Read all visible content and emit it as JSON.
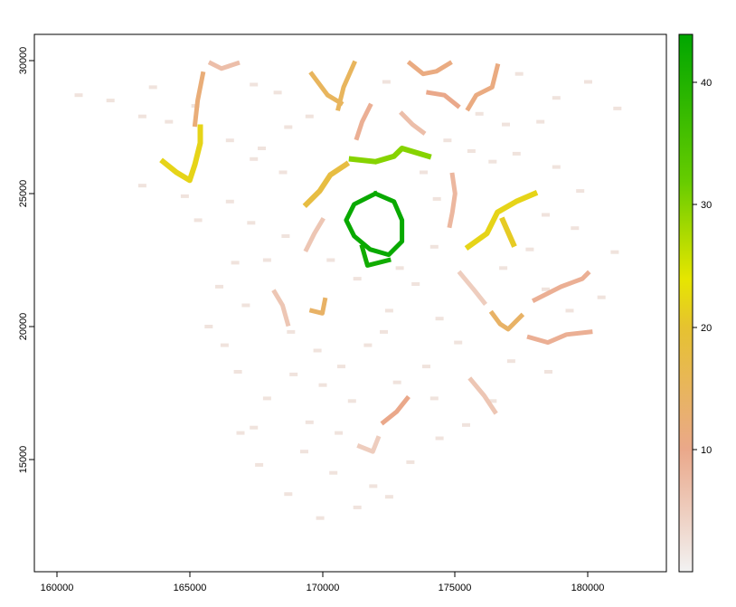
{
  "chart_data": {
    "type": "heatmap",
    "title": "",
    "xlabel": "",
    "ylabel": "",
    "xlim": [
      159000,
      183000
    ],
    "ylim": [
      11000,
      31000
    ],
    "x_ticks": [
      160000,
      165000,
      170000,
      175000,
      180000
    ],
    "y_ticks": [
      15000,
      20000,
      25000,
      30000
    ],
    "x_tick_labels": [
      "160000",
      "165000",
      "170000",
      "175000",
      "180000"
    ],
    "y_tick_labels": [
      "15000",
      "20000",
      "25000",
      "30000"
    ],
    "colorbar": {
      "range": [
        0,
        44
      ],
      "ticks": [
        10,
        20,
        30,
        40
      ],
      "tick_labels": [
        "10",
        "20",
        "30",
        "40"
      ],
      "stops": [
        {
          "value": 0,
          "color": "#f2f2f2"
        },
        {
          "value": 10,
          "color": "#eaa88a"
        },
        {
          "value": 20,
          "color": "#e6c230"
        },
        {
          "value": 24,
          "color": "#e6e600"
        },
        {
          "value": 32,
          "color": "#66cc00"
        },
        {
          "value": 44,
          "color": "#00a600"
        }
      ]
    },
    "features": [
      {
        "points": [
          [
            172000,
            25000
          ],
          [
            171200,
            24600
          ],
          [
            170900,
            24000
          ],
          [
            171200,
            23400
          ],
          [
            171800,
            22900
          ],
          [
            172500,
            22700
          ],
          [
            173000,
            23200
          ],
          [
            173000,
            24000
          ],
          [
            172700,
            24700
          ],
          [
            172000,
            25000
          ]
        ],
        "value": 43
      },
      {
        "points": [
          [
            171500,
            23000
          ],
          [
            171700,
            22300
          ],
          [
            172500,
            22500
          ]
        ],
        "value": 42
      },
      {
        "points": [
          [
            171100,
            26300
          ],
          [
            172000,
            26200
          ],
          [
            172700,
            26400
          ],
          [
            173000,
            26700
          ],
          [
            174000,
            26400
          ]
        ],
        "value": 30
      },
      {
        "points": [
          [
            164000,
            26200
          ],
          [
            164500,
            25800
          ],
          [
            165000,
            25500
          ],
          [
            165200,
            26100
          ],
          [
            165400,
            26900
          ],
          [
            165400,
            27500
          ]
        ],
        "value": 22
      },
      {
        "points": [
          [
            175500,
            23000
          ],
          [
            176200,
            23500
          ],
          [
            176600,
            24300
          ],
          [
            177300,
            24700
          ],
          [
            178000,
            25000
          ]
        ],
        "value": 22
      },
      {
        "points": [
          [
            176800,
            24000
          ],
          [
            177200,
            23100
          ]
        ],
        "value": 21
      },
      {
        "points": [
          [
            169400,
            24600
          ],
          [
            169900,
            25100
          ],
          [
            170300,
            25700
          ],
          [
            170900,
            26100
          ]
        ],
        "value": 18
      },
      {
        "points": [
          [
            169600,
            29500
          ],
          [
            170200,
            28700
          ],
          [
            170700,
            28400
          ]
        ],
        "value": 15
      },
      {
        "points": [
          [
            171200,
            29900
          ],
          [
            170800,
            29000
          ],
          [
            170600,
            28200
          ]
        ],
        "value": 15
      },
      {
        "points": [
          [
            169600,
            20600
          ],
          [
            170000,
            20500
          ],
          [
            170100,
            21000
          ]
        ],
        "value": 14
      },
      {
        "points": [
          [
            176400,
            20500
          ],
          [
            176700,
            20100
          ],
          [
            177000,
            19900
          ],
          [
            177500,
            20400
          ]
        ],
        "value": 14
      },
      {
        "points": [
          [
            165500,
            29500
          ],
          [
            165300,
            28500
          ],
          [
            165200,
            27600
          ]
        ],
        "value": 12
      },
      {
        "points": [
          [
            173300,
            29900
          ],
          [
            173800,
            29500
          ],
          [
            174300,
            29600
          ],
          [
            174800,
            29900
          ]
        ],
        "value": 11
      },
      {
        "points": [
          [
            176600,
            29800
          ],
          [
            176400,
            29000
          ],
          [
            175800,
            28700
          ],
          [
            175500,
            28200
          ]
        ],
        "value": 11
      },
      {
        "points": [
          [
            174000,
            28800
          ],
          [
            174600,
            28700
          ],
          [
            175100,
            28300
          ]
        ],
        "value": 10
      },
      {
        "points": [
          [
            172300,
            16400
          ],
          [
            172800,
            16800
          ],
          [
            173200,
            17300
          ]
        ],
        "value": 10
      },
      {
        "points": [
          [
            178000,
            21000
          ],
          [
            179000,
            21500
          ],
          [
            179800,
            21800
          ],
          [
            180000,
            22000
          ]
        ],
        "value": 9
      },
      {
        "points": [
          [
            177800,
            19600
          ],
          [
            178500,
            19400
          ],
          [
            179200,
            19700
          ],
          [
            180100,
            19800
          ]
        ],
        "value": 9
      },
      {
        "points": [
          [
            171300,
            27100
          ],
          [
            171500,
            27700
          ],
          [
            171800,
            28300
          ]
        ],
        "value": 9
      },
      {
        "points": [
          [
            174900,
            25700
          ],
          [
            175000,
            25000
          ],
          [
            174900,
            24300
          ],
          [
            174800,
            23800
          ]
        ],
        "value": 8
      },
      {
        "points": [
          [
            166800,
            29900
          ],
          [
            166200,
            29700
          ],
          [
            165800,
            29900
          ]
        ],
        "value": 7
      },
      {
        "points": [
          [
            173000,
            28000
          ],
          [
            173400,
            27600
          ],
          [
            173800,
            27300
          ]
        ],
        "value": 7
      },
      {
        "points": [
          [
            175600,
            18000
          ],
          [
            176100,
            17400
          ],
          [
            176500,
            16800
          ]
        ],
        "value": 6
      },
      {
        "points": [
          [
            168200,
            21300
          ],
          [
            168500,
            20800
          ],
          [
            168700,
            20100
          ]
        ],
        "value": 6
      },
      {
        "points": [
          [
            169400,
            22900
          ],
          [
            169700,
            23500
          ],
          [
            170000,
            24000
          ]
        ],
        "value": 6
      },
      {
        "points": [
          [
            175200,
            22000
          ],
          [
            175700,
            21400
          ],
          [
            176100,
            20900
          ]
        ],
        "value": 5
      },
      {
        "points": [
          [
            171400,
            15500
          ],
          [
            171900,
            15300
          ],
          [
            172100,
            15800
          ]
        ],
        "value": 5
      }
    ],
    "specks": [
      [
        162000,
        28500
      ],
      [
        163200,
        27900
      ],
      [
        164200,
        27700
      ],
      [
        166500,
        27000
      ],
      [
        167700,
        26700
      ],
      [
        168700,
        27500
      ],
      [
        168300,
        28800
      ],
      [
        167400,
        29100
      ],
      [
        169500,
        27900
      ],
      [
        172400,
        29200
      ],
      [
        174700,
        27000
      ],
      [
        175600,
        26600
      ],
      [
        176400,
        26200
      ],
      [
        177300,
        26500
      ],
      [
        178200,
        27700
      ],
      [
        178800,
        28600
      ],
      [
        180000,
        29200
      ],
      [
        163200,
        25300
      ],
      [
        164800,
        24900
      ],
      [
        166500,
        24700
      ],
      [
        167300,
        23900
      ],
      [
        168600,
        23400
      ],
      [
        167900,
        22500
      ],
      [
        166700,
        22400
      ],
      [
        166100,
        21500
      ],
      [
        167100,
        20800
      ],
      [
        168800,
        19800
      ],
      [
        169800,
        19100
      ],
      [
        170700,
        18500
      ],
      [
        171700,
        19300
      ],
      [
        172500,
        20600
      ],
      [
        173500,
        21600
      ],
      [
        174400,
        20300
      ],
      [
        175100,
        19400
      ],
      [
        173900,
        18500
      ],
      [
        172800,
        17900
      ],
      [
        171100,
        17200
      ],
      [
        170000,
        17800
      ],
      [
        168900,
        18200
      ],
      [
        167900,
        17300
      ],
      [
        169500,
        16400
      ],
      [
        170600,
        16000
      ],
      [
        169300,
        15300
      ],
      [
        170400,
        14500
      ],
      [
        171900,
        14000
      ],
      [
        173300,
        14900
      ],
      [
        174400,
        15800
      ],
      [
        175400,
        16300
      ],
      [
        176400,
        17200
      ],
      [
        177100,
        18700
      ],
      [
        178500,
        18300
      ],
      [
        179300,
        20600
      ],
      [
        180500,
        21100
      ],
      [
        181000,
        22800
      ],
      [
        179500,
        23700
      ],
      [
        178400,
        24200
      ],
      [
        178800,
        26000
      ],
      [
        179700,
        25100
      ],
      [
        173800,
        25800
      ],
      [
        174300,
        24800
      ],
      [
        169900,
        12800
      ],
      [
        168700,
        13700
      ],
      [
        167600,
        14800
      ],
      [
        166900,
        16000
      ],
      [
        166800,
        18300
      ],
      [
        165700,
        20000
      ],
      [
        166300,
        19300
      ],
      [
        172900,
        22200
      ],
      [
        174200,
        23000
      ],
      [
        176800,
        22200
      ],
      [
        177800,
        22900
      ],
      [
        168500,
        25800
      ],
      [
        167400,
        26300
      ],
      [
        175900,
        28000
      ],
      [
        176900,
        27600
      ],
      [
        165200,
        28300
      ],
      [
        160800,
        28700
      ],
      [
        163600,
        29000
      ],
      [
        177400,
        29500
      ],
      [
        181100,
        28200
      ],
      [
        171300,
        21800
      ],
      [
        170300,
        22500
      ],
      [
        172300,
        19800
      ],
      [
        174200,
        17300
      ],
      [
        167400,
        16200
      ],
      [
        171300,
        13200
      ],
      [
        172500,
        13600
      ],
      [
        165300,
        24000
      ],
      [
        178400,
        21400
      ]
    ]
  }
}
